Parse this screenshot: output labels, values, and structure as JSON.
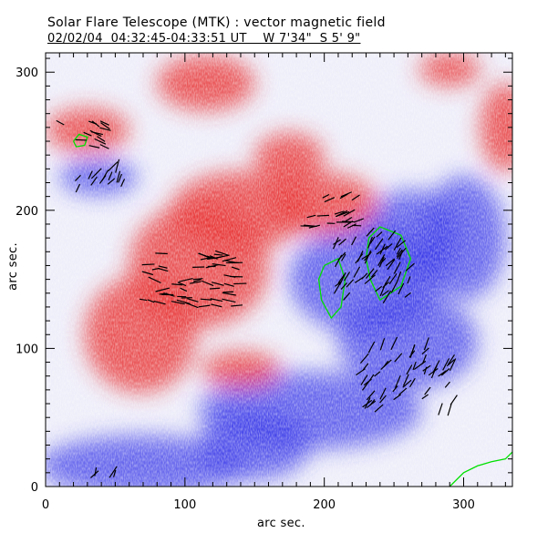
{
  "header": {
    "title": "Solar Flare Telescope (MTK) : vector magnetic field",
    "subtitle": "02/02/04  04:32:45-04:33:51 UT    W 7'34\"  S 5' 9\""
  },
  "chart_data": {
    "type": "heatmap",
    "title": "Solar Flare Telescope (MTK) : vector magnetic field",
    "xlabel": "arc sec.",
    "ylabel": "arc sec.",
    "xlim": [
      0,
      335
    ],
    "ylim": [
      0,
      314
    ],
    "xticks": [
      "0",
      "100",
      "200",
      "300"
    ],
    "yticks": [
      "0",
      "100",
      "200",
      "300"
    ],
    "colors": {
      "positive": "#e83030",
      "negative": "#3838e8",
      "contour": "#00e000",
      "vector": "#000000"
    },
    "positive_regions": [
      {
        "x": 30,
        "y": 258,
        "rx": 30,
        "ry": 16
      },
      {
        "x": 110,
        "y": 160,
        "rx": 50,
        "ry": 45
      },
      {
        "x": 68,
        "y": 110,
        "rx": 40,
        "ry": 42
      },
      {
        "x": 140,
        "y": 200,
        "rx": 50,
        "ry": 28
      },
      {
        "x": 200,
        "y": 205,
        "rx": 38,
        "ry": 22
      },
      {
        "x": 115,
        "y": 292,
        "rx": 35,
        "ry": 20
      },
      {
        "x": 290,
        "y": 302,
        "rx": 22,
        "ry": 12
      },
      {
        "x": 330,
        "y": 260,
        "rx": 18,
        "ry": 32
      },
      {
        "x": 140,
        "y": 85,
        "rx": 28,
        "ry": 13
      },
      {
        "x": 175,
        "y": 238,
        "rx": 25,
        "ry": 18
      }
    ],
    "negative_regions": [
      {
        "x": 38,
        "y": 224,
        "rx": 28,
        "ry": 13
      },
      {
        "x": 230,
        "y": 150,
        "rx": 55,
        "ry": 40
      },
      {
        "x": 262,
        "y": 180,
        "rx": 35,
        "ry": 35
      },
      {
        "x": 70,
        "y": 15,
        "rx": 75,
        "ry": 22
      },
      {
        "x": 190,
        "y": 55,
        "rx": 80,
        "ry": 28
      },
      {
        "x": 260,
        "y": 105,
        "rx": 50,
        "ry": 35
      },
      {
        "x": 300,
        "y": 180,
        "rx": 30,
        "ry": 45
      },
      {
        "x": 150,
        "y": 30,
        "rx": 40,
        "ry": 25
      }
    ],
    "contours": [
      [
        [
          20,
          250
        ],
        [
          24,
          255
        ],
        [
          30,
          253
        ],
        [
          28,
          247
        ],
        [
          22,
          246
        ],
        [
          20,
          250
        ]
      ],
      [
        [
          200,
          160
        ],
        [
          210,
          165
        ],
        [
          215,
          150
        ],
        [
          212,
          130
        ],
        [
          205,
          122
        ],
        [
          198,
          135
        ],
        [
          196,
          150
        ],
        [
          200,
          160
        ]
      ],
      [
        [
          232,
          180
        ],
        [
          240,
          188
        ],
        [
          255,
          182
        ],
        [
          262,
          165
        ],
        [
          255,
          145
        ],
        [
          240,
          135
        ],
        [
          233,
          150
        ],
        [
          230,
          165
        ],
        [
          232,
          180
        ]
      ],
      [
        [
          290,
          0
        ],
        [
          300,
          10
        ],
        [
          310,
          15
        ],
        [
          320,
          18
        ],
        [
          330,
          20
        ],
        [
          335,
          25
        ]
      ]
    ],
    "vector_clusters": [
      {
        "x": 28,
        "y": 255,
        "w": 35,
        "h": 20,
        "angle": -20,
        "n": 14
      },
      {
        "x": 38,
        "y": 225,
        "w": 35,
        "h": 18,
        "angle": 60,
        "n": 14
      },
      {
        "x": 105,
        "y": 150,
        "w": 70,
        "h": 40,
        "angle": -5,
        "n": 60
      },
      {
        "x": 205,
        "y": 200,
        "w": 40,
        "h": 25,
        "angle": 15,
        "n": 22
      },
      {
        "x": 235,
        "y": 160,
        "w": 55,
        "h": 50,
        "angle": 50,
        "n": 60
      },
      {
        "x": 260,
        "y": 80,
        "w": 70,
        "h": 50,
        "angle": 55,
        "n": 55
      },
      {
        "x": 45,
        "y": 10,
        "w": 20,
        "h": 4,
        "angle": 60,
        "n": 4
      }
    ]
  }
}
